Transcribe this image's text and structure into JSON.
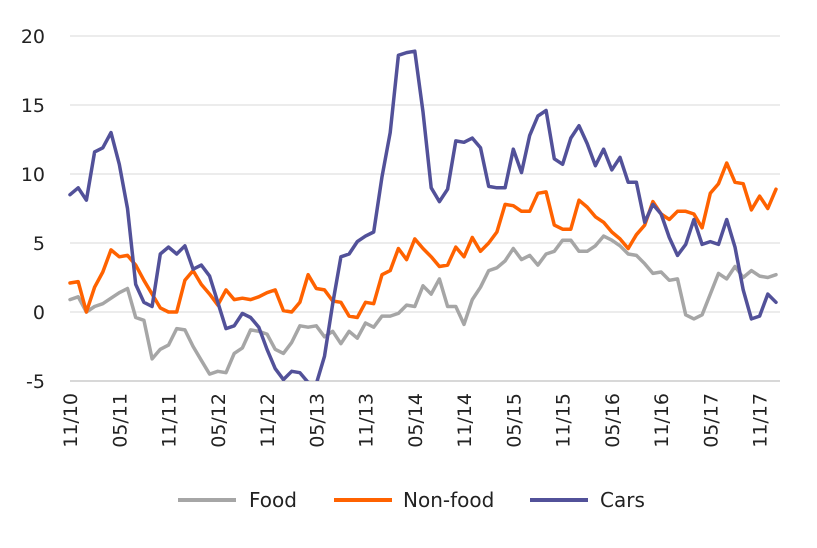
{
  "chart_data": {
    "type": "line",
    "title": "",
    "xlabel": "",
    "ylabel": "",
    "ylim": [
      -5,
      20
    ],
    "yticks": [
      -5,
      0,
      5,
      10,
      15,
      20
    ],
    "ytick_labels": [
      "-5",
      "0",
      "5",
      "10",
      "15",
      "20"
    ],
    "x_start": "11/10",
    "x_end": "11/17",
    "x_ticks": [
      "11/10",
      "05/11",
      "11/11",
      "05/12",
      "11/12",
      "05/13",
      "11/13",
      "05/14",
      "11/14",
      "05/15",
      "11/15",
      "05/16",
      "11/16",
      "05/17",
      "11/17"
    ],
    "grid": "horizontal",
    "legend_position": "bottom",
    "series": [
      {
        "name": "Food",
        "color": "#a6a6a6",
        "values": [
          0.9,
          1.1,
          0.0,
          0.4,
          0.6,
          1.0,
          1.4,
          1.7,
          -0.4,
          -0.6,
          -3.4,
          -2.7,
          -2.4,
          -1.2,
          -1.3,
          -2.5,
          -3.5,
          -4.5,
          -4.3,
          -4.4,
          -3.0,
          -2.6,
          -1.3,
          -1.4,
          -1.6,
          -2.7,
          -3.0,
          -2.2,
          -1.0,
          -1.1,
          -1.0,
          -1.8,
          -1.4,
          -2.3,
          -1.4,
          -1.9,
          -0.8,
          -1.1,
          -0.3,
          -0.3,
          -0.1,
          0.5,
          0.4,
          1.9,
          1.3,
          2.4,
          0.4,
          0.4,
          -0.9,
          0.9,
          1.8,
          3.0,
          3.2,
          3.7,
          4.6,
          3.8,
          4.1,
          3.4,
          4.2,
          4.4,
          5.2,
          5.2,
          4.4,
          4.4,
          4.8,
          5.5,
          5.2,
          4.8,
          4.2,
          4.1,
          3.5,
          2.8,
          2.9,
          2.3,
          2.4,
          -0.2,
          -0.5,
          -0.2,
          1.3,
          2.8,
          2.4,
          3.3,
          2.5,
          3.0,
          2.6,
          2.5,
          2.7
        ]
      },
      {
        "name": "Non-food",
        "color": "#ff6200",
        "values": [
          2.1,
          2.2,
          0.0,
          1.8,
          2.9,
          4.5,
          4.0,
          4.1,
          3.4,
          2.3,
          1.3,
          0.3,
          0.0,
          0.0,
          2.3,
          3.0,
          2.0,
          1.3,
          0.5,
          1.6,
          0.9,
          1.0,
          0.9,
          1.1,
          1.4,
          1.6,
          0.1,
          0.0,
          0.7,
          2.7,
          1.7,
          1.6,
          0.8,
          0.7,
          -0.3,
          -0.4,
          0.7,
          0.6,
          2.7,
          3.0,
          4.6,
          3.8,
          5.3,
          4.6,
          4.0,
          3.3,
          3.4,
          4.7,
          4.0,
          5.4,
          4.4,
          5.0,
          5.8,
          7.8,
          7.7,
          7.3,
          7.3,
          8.6,
          8.7,
          6.3,
          6.0,
          6.0,
          8.1,
          7.6,
          6.9,
          6.5,
          5.8,
          5.3,
          4.6,
          5.6,
          6.3,
          8.0,
          7.1,
          6.7,
          7.3,
          7.3,
          7.1,
          6.1,
          8.6,
          9.3,
          10.8,
          9.4,
          9.3,
          7.4,
          8.4,
          7.5,
          8.9
        ]
      },
      {
        "name": "Cars",
        "color": "#525199",
        "values": [
          8.5,
          9.0,
          8.1,
          11.6,
          11.9,
          13.0,
          10.7,
          7.5,
          2.0,
          0.7,
          0.4,
          4.2,
          4.7,
          4.2,
          4.8,
          3.1,
          3.4,
          2.6,
          0.7,
          -1.2,
          -1.0,
          -0.1,
          -0.4,
          -1.1,
          -2.7,
          -4.1,
          -4.9,
          -4.3,
          -4.4,
          -5.1,
          -5.2,
          -3.2,
          0.6,
          4.0,
          4.2,
          5.1,
          5.5,
          5.8,
          9.8,
          13.0,
          18.6,
          18.8,
          18.9,
          14.5,
          9.0,
          8.0,
          8.9,
          12.4,
          12.3,
          12.6,
          11.9,
          9.1,
          9.0,
          9.0,
          11.8,
          10.1,
          12.8,
          14.2,
          14.6,
          11.1,
          10.7,
          12.6,
          13.5,
          12.2,
          10.6,
          11.8,
          10.3,
          11.2,
          9.4,
          9.4,
          6.5,
          7.8,
          7.1,
          5.4,
          4.1,
          4.9,
          6.7,
          4.9,
          5.1,
          4.9,
          6.7,
          4.7,
          1.6,
          -0.5,
          -0.3,
          1.3,
          0.7
        ]
      }
    ]
  }
}
